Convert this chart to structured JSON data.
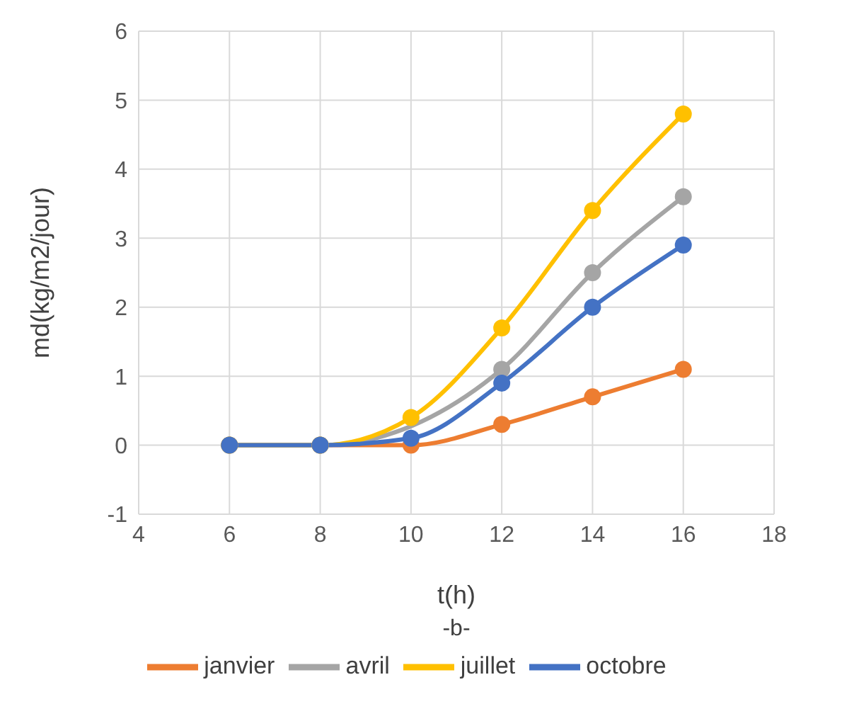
{
  "chart_data": {
    "type": "line",
    "xlabel": "t(h)",
    "ylabel": "md(kg/m2/jour)",
    "annotations": [
      "-b-"
    ],
    "x": [
      6,
      8,
      10,
      12,
      14,
      16
    ],
    "series": [
      {
        "name": "janvier",
        "color": "#ed7d31",
        "values": [
          0,
          0,
          0,
          0.3,
          0.7,
          1.1
        ]
      },
      {
        "name": "avril",
        "color": "#a5a5a5",
        "values": [
          0,
          0,
          null,
          1.1,
          2.5,
          3.6
        ]
      },
      {
        "name": "juillet",
        "color": "#ffc000",
        "values": [
          0,
          0,
          0.4,
          1.7,
          3.4,
          4.8
        ]
      },
      {
        "name": "octobre",
        "color": "#4472c4",
        "values": [
          0,
          0,
          0.1,
          0.9,
          2.0,
          2.9
        ]
      }
    ],
    "xlim": [
      4,
      18
    ],
    "xticks": [
      4,
      6,
      8,
      10,
      12,
      14,
      16,
      18
    ],
    "ylim": [
      -1,
      6
    ],
    "yticks": [
      -1,
      0,
      1,
      2,
      3,
      4,
      5,
      6
    ],
    "grid": true,
    "legend": "bottom",
    "marker": "circle",
    "line_style": "solid"
  }
}
